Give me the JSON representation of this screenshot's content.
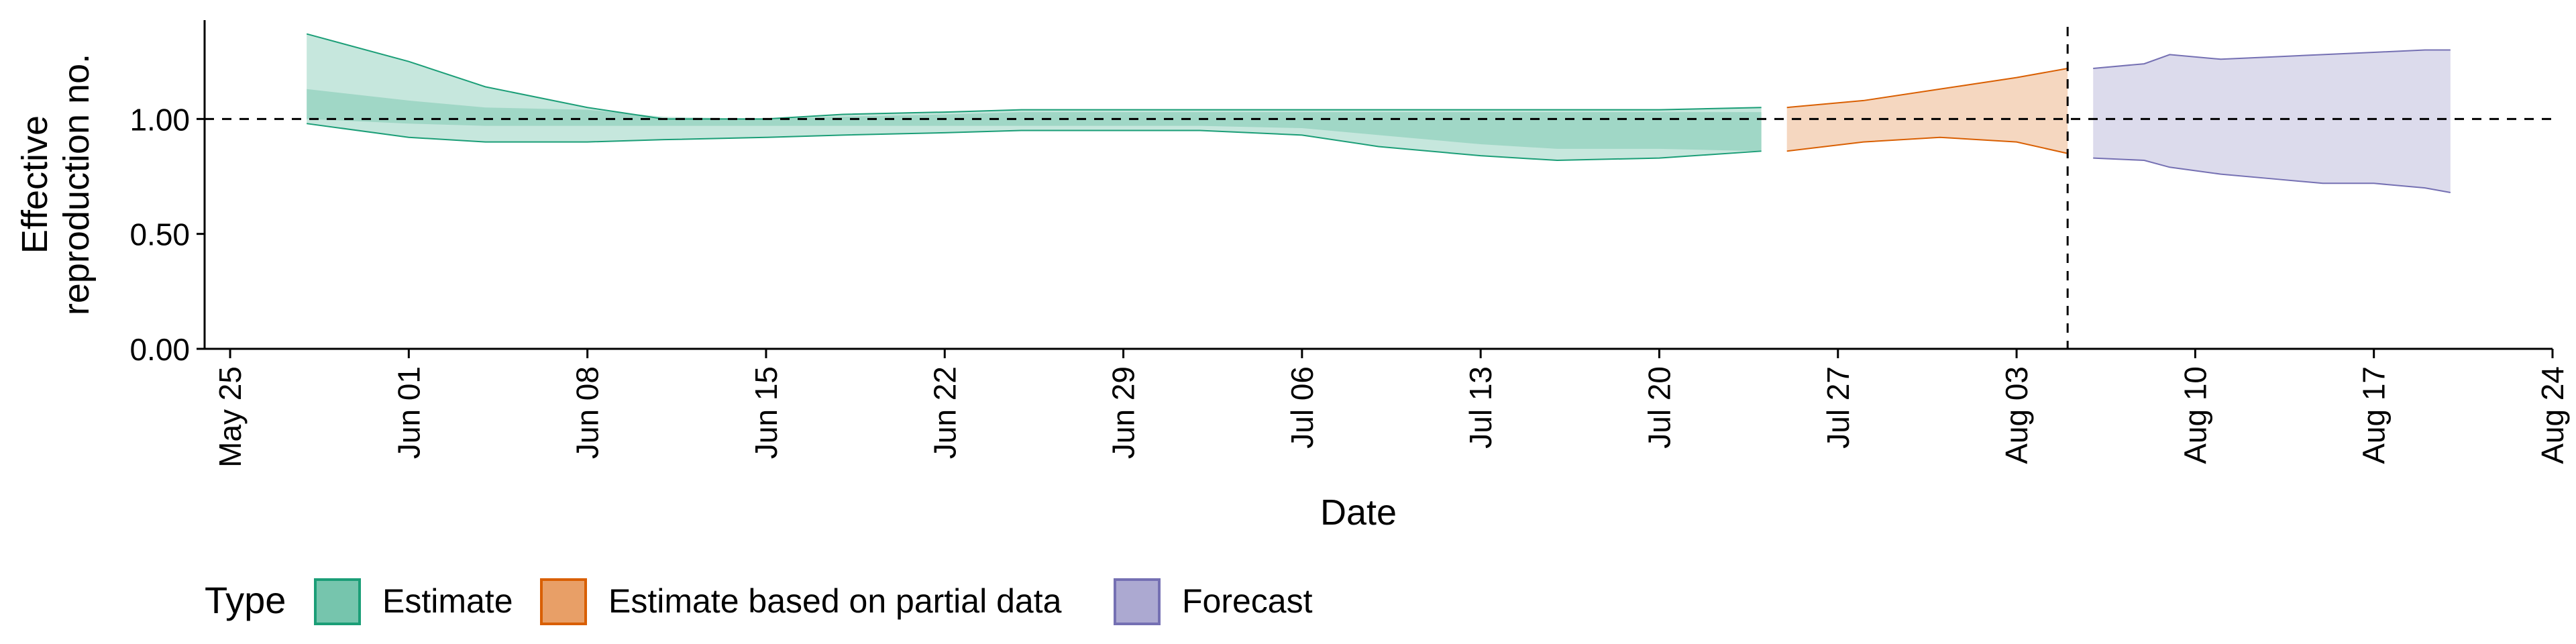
{
  "chart_data": {
    "type": "area",
    "xlabel": "Date",
    "ylabel": "Effective\nreproduction no.",
    "ylim": [
      0,
      1.43
    ],
    "xlim": [
      "2021-05-24",
      "2021-08-24"
    ],
    "y_ticks": [
      {
        "value": 0.0,
        "label": "0.00"
      },
      {
        "value": 0.5,
        "label": "0.50"
      },
      {
        "value": 1.0,
        "label": "1.00"
      }
    ],
    "x_ticks": [
      {
        "date": "2021-05-25",
        "label": "May 25"
      },
      {
        "date": "2021-06-01",
        "label": "Jun 01"
      },
      {
        "date": "2021-06-08",
        "label": "Jun 08"
      },
      {
        "date": "2021-06-15",
        "label": "Jun 15"
      },
      {
        "date": "2021-06-22",
        "label": "Jun 22"
      },
      {
        "date": "2021-06-29",
        "label": "Jun 29"
      },
      {
        "date": "2021-07-06",
        "label": "Jul 06"
      },
      {
        "date": "2021-07-13",
        "label": "Jul 13"
      },
      {
        "date": "2021-07-20",
        "label": "Jul 20"
      },
      {
        "date": "2021-07-27",
        "label": "Jul 27"
      },
      {
        "date": "2021-08-03",
        "label": "Aug 03"
      },
      {
        "date": "2021-08-10",
        "label": "Aug 10"
      },
      {
        "date": "2021-08-17",
        "label": "Aug 17"
      },
      {
        "date": "2021-08-24",
        "label": "Aug 24"
      }
    ],
    "reference_line_y": 1.0,
    "reference_line_x": "2021-08-05",
    "grid": false,
    "legend": {
      "title": "Type",
      "position": "bottom-left",
      "entries": [
        {
          "name": "Estimate",
          "color": "#1b9e77"
        },
        {
          "name": "Estimate based on partial data",
          "color": "#d95f02"
        },
        {
          "name": "Forecast",
          "color": "#7570b3"
        }
      ]
    },
    "series": [
      {
        "name": "Estimate",
        "color": "#1b9e77",
        "x": [
          "2021-05-28",
          "2021-06-01",
          "2021-06-04",
          "2021-06-08",
          "2021-06-11",
          "2021-06-15",
          "2021-06-18",
          "2021-06-22",
          "2021-06-25",
          "2021-06-29",
          "2021-07-02",
          "2021-07-06",
          "2021-07-09",
          "2021-07-13",
          "2021-07-16",
          "2021-07-20",
          "2021-07-24"
        ],
        "outer_lower": [
          0.98,
          0.92,
          0.9,
          0.9,
          0.91,
          0.92,
          0.93,
          0.94,
          0.95,
          0.95,
          0.95,
          0.93,
          0.88,
          0.84,
          0.82,
          0.83,
          0.86
        ],
        "outer_upper": [
          1.37,
          1.25,
          1.14,
          1.05,
          1.0,
          1.0,
          1.02,
          1.03,
          1.04,
          1.04,
          1.04,
          1.04,
          1.04,
          1.04,
          1.04,
          1.04,
          1.05
        ],
        "inner_lower": [
          1.0,
          0.98,
          0.97,
          0.97,
          0.97,
          0.97,
          0.97,
          0.97,
          0.97,
          0.97,
          0.97,
          0.96,
          0.93,
          0.89,
          0.87,
          0.87,
          0.86
        ],
        "inner_upper": [
          1.13,
          1.08,
          1.05,
          1.04,
          1.01,
          1.0,
          1.01,
          1.02,
          1.03,
          1.03,
          1.03,
          1.03,
          1.03,
          1.03,
          1.03,
          1.03,
          1.03
        ]
      },
      {
        "name": "Estimate based on partial data",
        "color": "#d95f02",
        "x": [
          "2021-07-25",
          "2021-07-28",
          "2021-07-31",
          "2021-08-03",
          "2021-08-05"
        ],
        "outer_lower": [
          0.86,
          0.9,
          0.92,
          0.9,
          0.85
        ],
        "outer_upper": [
          1.05,
          1.08,
          1.13,
          1.18,
          1.22
        ]
      },
      {
        "name": "Forecast",
        "color": "#7570b3",
        "x": [
          "2021-08-06",
          "2021-08-08",
          "2021-08-09",
          "2021-08-11",
          "2021-08-13",
          "2021-08-15",
          "2021-08-17",
          "2021-08-19",
          "2021-08-20"
        ],
        "outer_lower": [
          0.83,
          0.82,
          0.79,
          0.76,
          0.74,
          0.72,
          0.72,
          0.7,
          0.68
        ],
        "outer_upper": [
          1.22,
          1.24,
          1.28,
          1.26,
          1.27,
          1.28,
          1.29,
          1.3,
          1.3
        ]
      }
    ]
  }
}
